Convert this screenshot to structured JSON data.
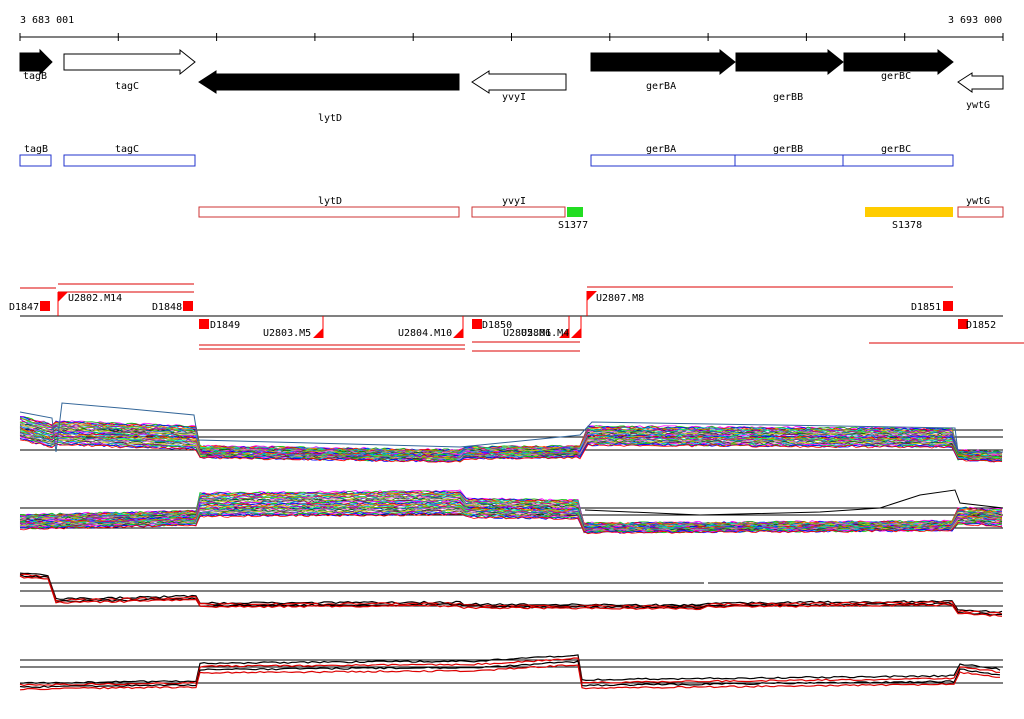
{
  "ruler": {
    "start_label": "3 683 001",
    "end_label": "3 693 000"
  },
  "genes": [
    {
      "name": "tagB",
      "strand": "+",
      "fill": "#000000"
    },
    {
      "name": "tagC",
      "strand": "+",
      "fill": "#ffffff"
    },
    {
      "name": "lytD",
      "strand": "-",
      "fill": "#000000"
    },
    {
      "name": "yvyI",
      "strand": "-",
      "fill": "#ffffff"
    },
    {
      "name": "gerBA",
      "strand": "+",
      "fill": "#000000"
    },
    {
      "name": "gerBB",
      "strand": "+",
      "fill": "#000000"
    },
    {
      "name": "gerBC",
      "strand": "+",
      "fill": "#000000"
    },
    {
      "name": "ywtG",
      "strand": "-",
      "fill": "#ffffff"
    }
  ],
  "plus_boxes": [
    {
      "name": "tagB"
    },
    {
      "name": "tagC"
    },
    {
      "name": "gerBA"
    },
    {
      "name": "gerBB"
    },
    {
      "name": "gerBC"
    }
  ],
  "minus_boxes": [
    {
      "name": "lytD"
    },
    {
      "name": "yvyI"
    },
    {
      "name": "ywtG"
    }
  ],
  "srna_features": [
    {
      "name": "S1377",
      "color": "#22dd22"
    },
    {
      "name": "S1378",
      "color": "#ffcc00"
    }
  ],
  "upshift_markers": [
    {
      "name": "U2802.M14"
    },
    {
      "name": "U2807.M8"
    },
    {
      "name": "U2803.M5"
    },
    {
      "name": "U2804.M10"
    },
    {
      "name": "U2805.M1"
    },
    {
      "name": "U2806.M4"
    }
  ],
  "downshift_markers": [
    {
      "name": "D1847"
    },
    {
      "name": "D1848"
    },
    {
      "name": "D1849"
    },
    {
      "name": "D1850"
    },
    {
      "name": "D1851"
    },
    {
      "name": "D1852"
    }
  ],
  "colors": {
    "gene_box_plus": "#2233cc",
    "gene_box_minus": "#cc3333",
    "marker": "#ff0000",
    "highlight_trace": "#dd0000"
  }
}
